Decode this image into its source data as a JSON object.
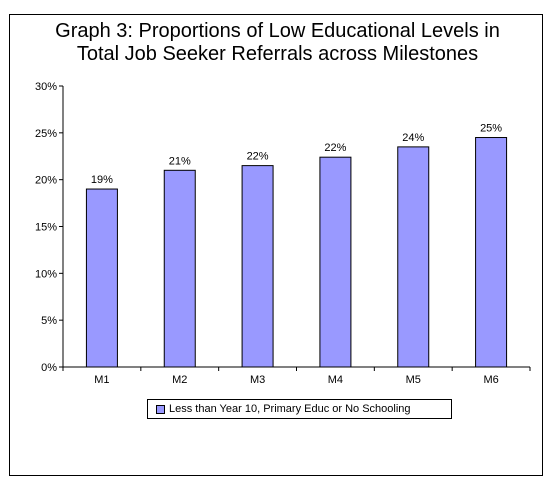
{
  "chart_data": {
    "type": "bar",
    "title_lines": [
      "Graph 3: Proportions of Low Educational Levels in",
      "Total Job Seeker Referrals across Milestones"
    ],
    "categories": [
      "M1",
      "M2",
      "M3",
      "M4",
      "M5",
      "M6"
    ],
    "series": [
      {
        "name": "Less than Year 10, Primary Educ or No Schooling",
        "values": [
          19,
          21,
          21.5,
          22.4,
          23.5,
          24.5
        ],
        "data_labels": [
          "19%",
          "21%",
          "22%",
          "22%",
          "24%",
          "25%"
        ],
        "color": "#9999ff"
      }
    ],
    "yticks": [
      "0%",
      "5%",
      "10%",
      "15%",
      "20%",
      "25%",
      "30%"
    ],
    "ylim": [
      0,
      30
    ],
    "legend_position": "bottom",
    "grid": false
  }
}
